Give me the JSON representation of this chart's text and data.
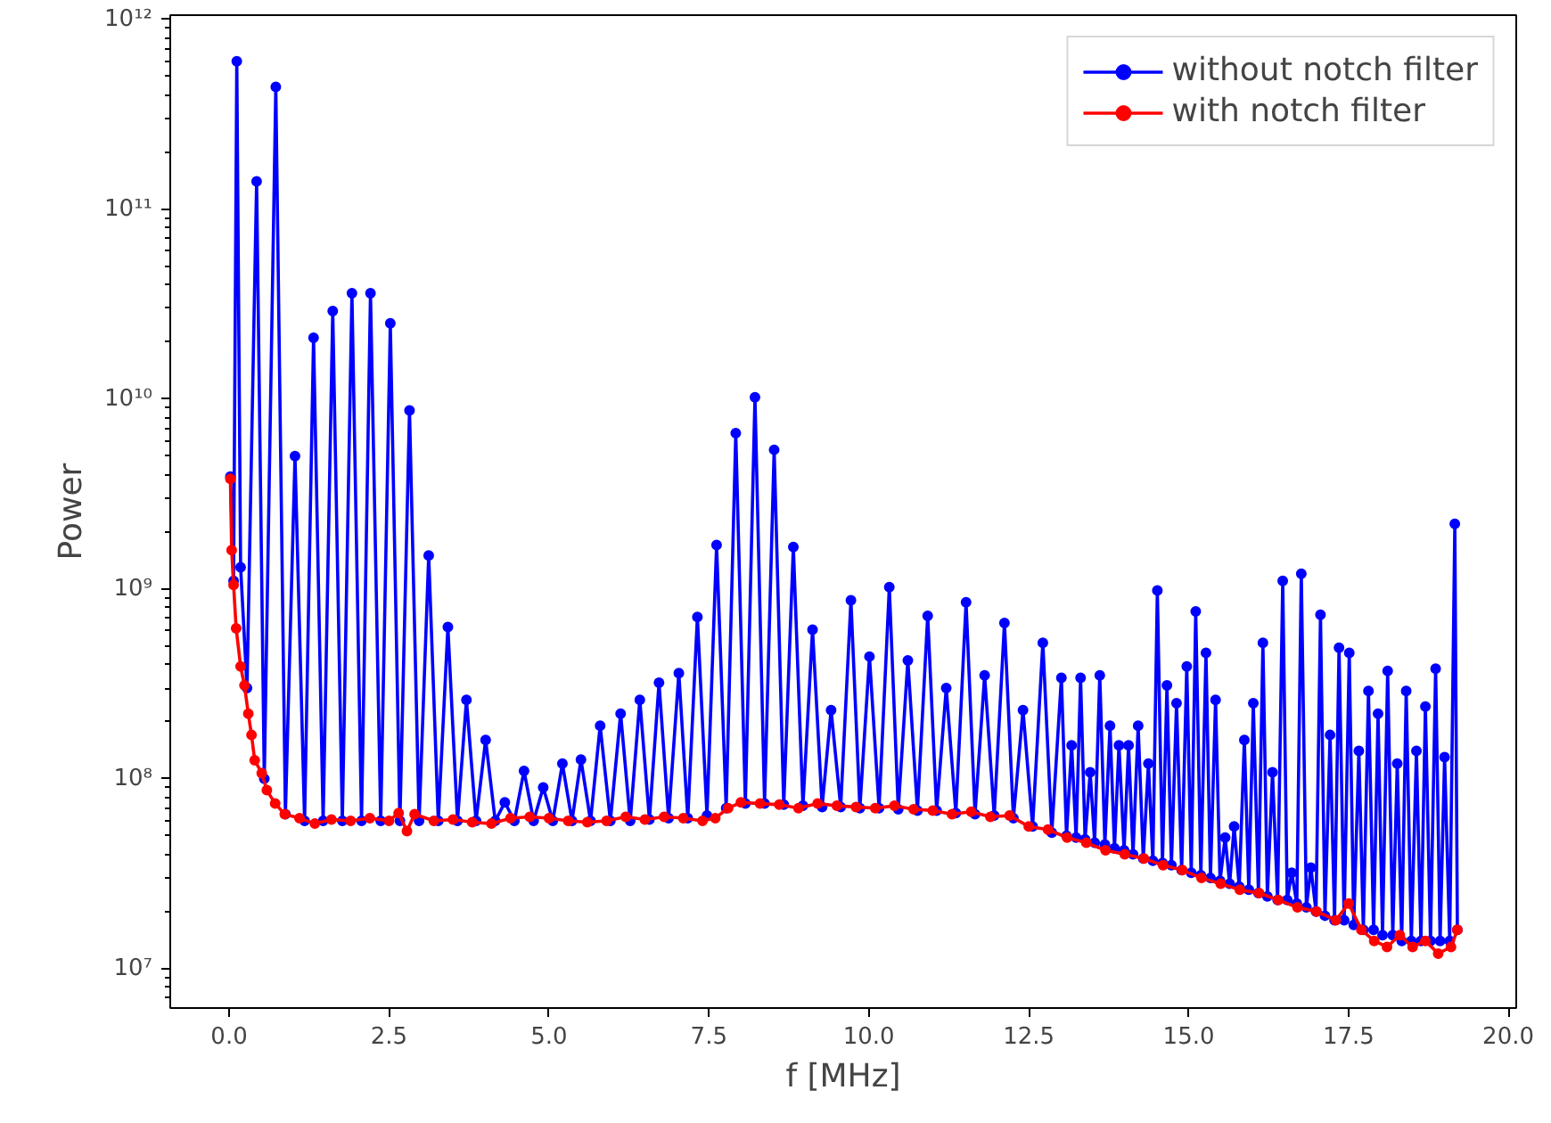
{
  "chart_data": {
    "type": "line",
    "xlabel": "f [MHz]",
    "ylabel": "Power",
    "log": "y",
    "grid": false,
    "legend": "top right",
    "marker": "circle",
    "line_style": "solid",
    "xlim": [
      -0.92,
      20.12
    ],
    "ylim": [
      6200000.0,
      1050000000000.0
    ],
    "xticks": [
      {
        "value": 0,
        "label": "0.0"
      },
      {
        "value": 2.5,
        "label": "2.5"
      },
      {
        "value": 5,
        "label": "5.0"
      },
      {
        "value": 7.5,
        "label": "7.5"
      },
      {
        "value": 10,
        "label": "10.0"
      },
      {
        "value": 12.5,
        "label": "12.5"
      },
      {
        "value": 15,
        "label": "15.0"
      },
      {
        "value": 17.5,
        "label": "17.5"
      },
      {
        "value": 20,
        "label": "20.0"
      }
    ],
    "yticks": [
      {
        "value": 10000000.0,
        "label": "10⁷"
      },
      {
        "value": 100000000.0,
        "label": "10⁸"
      },
      {
        "value": 1000000000.0,
        "label": "10⁹"
      },
      {
        "value": 10000000000.0,
        "label": "10¹⁰"
      },
      {
        "value": 100000000000.0,
        "label": "10¹¹"
      },
      {
        "value": 1000000000000.0,
        "label": "10¹²"
      }
    ],
    "series": [
      {
        "name": "without notch filter",
        "color": "#0000ff",
        "x": [
          0.02,
          0.07,
          0.12,
          0.18,
          0.28,
          0.43,
          0.55,
          0.73,
          0.88,
          1.03,
          1.18,
          1.32,
          1.47,
          1.62,
          1.77,
          1.92,
          2.07,
          2.21,
          2.37,
          2.52,
          2.67,
          2.82,
          2.97,
          3.12,
          3.27,
          3.42,
          3.57,
          3.71,
          3.86,
          4.01,
          4.16,
          4.31,
          4.46,
          4.61,
          4.76,
          4.91,
          5.06,
          5.21,
          5.36,
          5.5,
          5.65,
          5.8,
          5.96,
          6.12,
          6.27,
          6.42,
          6.57,
          6.72,
          6.87,
          7.03,
          7.17,
          7.32,
          7.47,
          7.62,
          7.77,
          7.92,
          8.07,
          8.22,
          8.37,
          8.52,
          8.67,
          8.82,
          8.97,
          9.12,
          9.27,
          9.41,
          9.56,
          9.72,
          9.86,
          10.01,
          10.16,
          10.32,
          10.46,
          10.61,
          10.76,
          10.92,
          11.06,
          11.21,
          11.36,
          11.52,
          11.66,
          11.81,
          11.96,
          12.12,
          12.26,
          12.41,
          12.56,
          12.72,
          12.86,
          13.01,
          13.09,
          13.17,
          13.24,
          13.31,
          13.38,
          13.46,
          13.53,
          13.61,
          13.69,
          13.77,
          13.84,
          13.91,
          13.99,
          14.06,
          14.13,
          14.21,
          14.29,
          14.37,
          14.44,
          14.51,
          14.59,
          14.66,
          14.73,
          14.81,
          14.89,
          14.97,
          15.04,
          15.11,
          15.19,
          15.27,
          15.34,
          15.42,
          15.49,
          15.57,
          15.64,
          15.71,
          15.79,
          15.87,
          15.94,
          16.01,
          16.09,
          16.16,
          16.23,
          16.31,
          16.39,
          16.47,
          16.54,
          16.61,
          16.69,
          16.76,
          16.84,
          16.91,
          16.99,
          17.06,
          17.13,
          17.21,
          17.28,
          17.35,
          17.43,
          17.51,
          17.58,
          17.66,
          17.73,
          17.81,
          17.89,
          17.96,
          18.03,
          18.11,
          18.19,
          18.26,
          18.33,
          18.4,
          18.48,
          18.56,
          18.63,
          18.7,
          18.78,
          18.86,
          18.93,
          19.0,
          19.08,
          19.16,
          19.2
        ],
        "values": [
          3900000000.0,
          1100000000.0,
          600000000000.0,
          1300000000.0,
          300000000.0,
          140000000000.0,
          100000000.0,
          440000000000.0,
          65000000.0,
          5000000000.0,
          60000000.0,
          21000000000.0,
          60000000.0,
          29000000000.0,
          60000000.0,
          36000000000.0,
          60000000.0,
          36000000000.0,
          60000000.0,
          25000000000.0,
          60000000.0,
          8700000000.0,
          60000000.0,
          1500000000.0,
          60000000.0,
          630000000.0,
          60000000.0,
          260000000.0,
          60000000.0,
          160000000.0,
          60000000.0,
          75000000.0,
          60000000.0,
          110000000.0,
          60000000.0,
          90000000.0,
          60000000.0,
          120000000.0,
          60000000.0,
          126000000.0,
          60000000.0,
          190000000.0,
          60000000.0,
          220000000.0,
          60000000.0,
          260000000.0,
          61000000.0,
          320000000.0,
          62000000.0,
          360000000.0,
          62000000.0,
          710000000.0,
          64000000.0,
          1700000000.0,
          70000000.0,
          6600000000.0,
          74000000.0,
          10200000000.0,
          74000000.0,
          5400000000.0,
          73000000.0,
          1660000000.0,
          72000000.0,
          610000000.0,
          71000000.0,
          230000000.0,
          71000000.0,
          870000000.0,
          70000000.0,
          440000000.0,
          70000000.0,
          1020000000.0,
          69000000.0,
          420000000.0,
          68000000.0,
          720000000.0,
          68000000.0,
          300000000.0,
          66000000.0,
          850000000.0,
          65000000.0,
          350000000.0,
          64000000.0,
          660000000.0,
          62000000.0,
          230000000.0,
          56000000.0,
          520000000.0,
          52000000.0,
          340000000.0,
          50000000.0,
          150000000.0,
          49000000.0,
          340000000.0,
          48000000.0,
          108000000.0,
          46000000.0,
          350000000.0,
          45000000.0,
          190000000.0,
          43000000.0,
          150000000.0,
          42000000.0,
          150000000.0,
          40000000.0,
          190000000.0,
          38000000.0,
          120000000.0,
          37000000.0,
          980000000.0,
          36000000.0,
          310000000.0,
          35000000.0,
          250000000.0,
          33000000.0,
          390000000.0,
          32000000.0,
          760000000.0,
          31000000.0,
          460000000.0,
          30000000.0,
          260000000.0,
          29000000.0,
          49000000.0,
          28000000.0,
          56000000.0,
          27000000.0,
          160000000.0,
          26000000.0,
          250000000.0,
          25000000.0,
          520000000.0,
          24000000.0,
          108000000.0,
          23000000.0,
          1100000000.0,
          23000000.0,
          32000000.0,
          22000000.0,
          1200000000.0,
          21000000.0,
          34000000.0,
          20000000.0,
          730000000.0,
          19000000.0,
          170000000.0,
          18000000.0,
          490000000.0,
          18000000.0,
          460000000.0,
          17000000.0,
          140000000.0,
          16000000.0,
          290000000.0,
          16000000.0,
          220000000.0,
          15000000.0,
          370000000.0,
          15000000.0,
          120000000.0,
          14000000.0,
          290000000.0,
          14000000.0,
          140000000.0,
          14000000.0,
          240000000.0,
          14000000.0,
          380000000.0,
          14000000.0,
          130000000.0,
          14000000.0,
          2200000000.0,
          16000000.0
        ]
      },
      {
        "name": "with notch filter",
        "color": "#ff0000",
        "x": [
          0.02,
          0.04,
          0.07,
          0.11,
          0.18,
          0.24,
          0.3,
          0.35,
          0.4,
          0.51,
          0.59,
          0.72,
          0.87,
          1.1,
          1.34,
          1.6,
          1.9,
          2.2,
          2.5,
          2.65,
          2.78,
          2.9,
          3.2,
          3.5,
          3.8,
          4.1,
          4.4,
          4.7,
          5.0,
          5.3,
          5.6,
          5.9,
          6.2,
          6.5,
          6.8,
          7.1,
          7.4,
          7.6,
          7.8,
          8.0,
          8.3,
          8.6,
          8.9,
          9.2,
          9.5,
          9.8,
          10.1,
          10.4,
          10.7,
          11.0,
          11.3,
          11.6,
          11.9,
          12.2,
          12.5,
          12.8,
          13.1,
          13.4,
          13.7,
          14.0,
          14.3,
          14.6,
          14.9,
          15.2,
          15.5,
          15.8,
          16.1,
          16.4,
          16.7,
          17.0,
          17.3,
          17.5,
          17.7,
          17.9,
          18.1,
          18.3,
          18.5,
          18.7,
          18.9,
          19.1,
          19.2
        ],
        "values": [
          3800000000.0,
          1600000000.0,
          1050000000.0,
          620000000.0,
          390000000.0,
          310000000.0,
          220000000.0,
          170000000.0,
          125000000.0,
          107000000.0,
          87000000.0,
          74000000.0,
          65000000.0,
          62000000.0,
          58000000.0,
          61000000.0,
          60000000.0,
          62000000.0,
          60000000.0,
          66000000.0,
          53000000.0,
          65000000.0,
          60000000.0,
          61000000.0,
          59000000.0,
          58000000.0,
          62000000.0,
          63000000.0,
          62000000.0,
          60000000.0,
          59000000.0,
          60000000.0,
          63000000.0,
          61000000.0,
          63000000.0,
          62000000.0,
          60000000.0,
          62000000.0,
          70000000.0,
          75000000.0,
          74000000.0,
          73000000.0,
          70000000.0,
          74000000.0,
          72000000.0,
          71000000.0,
          70000000.0,
          72000000.0,
          69000000.0,
          68000000.0,
          65000000.0,
          67000000.0,
          63000000.0,
          64000000.0,
          56000000.0,
          54000000.0,
          49000000.0,
          46000000.0,
          42000000.0,
          40000000.0,
          38000000.0,
          35000000.0,
          33000000.0,
          30000000.0,
          28000000.0,
          26000000.0,
          25000000.0,
          23000000.0,
          21000000.0,
          20000000.0,
          18000000.0,
          22000000.0,
          16000000.0,
          14000000.0,
          13000000.0,
          15000000.0,
          13000000.0,
          14000000.0,
          12000000.0,
          13000000.0,
          16000000.0
        ]
      }
    ]
  }
}
